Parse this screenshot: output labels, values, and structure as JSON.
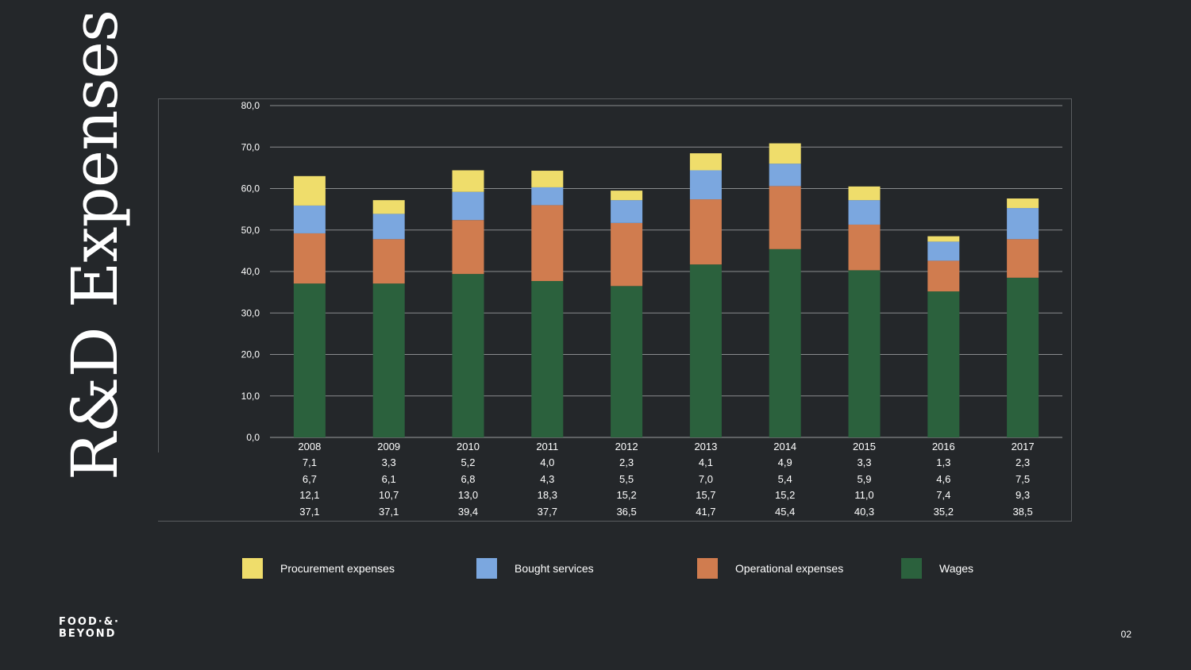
{
  "slide": {
    "title": "R&D Expenses",
    "page_number": "02",
    "logo": {
      "line1": "FOOD·&·",
      "line2": "BEYOND"
    }
  },
  "chart_data": {
    "type": "bar",
    "stacked": true,
    "categories": [
      "2008",
      "2009",
      "2010",
      "2011",
      "2012",
      "2013",
      "2014",
      "2015",
      "2016",
      "2017"
    ],
    "ylim": [
      0,
      80
    ],
    "yticks": [
      "0,0",
      "10,0",
      "20,0",
      "30,0",
      "40,0",
      "50,0",
      "60,0",
      "70,0",
      "80,0"
    ],
    "grid": true,
    "legend_position": "bottom",
    "series": [
      {
        "name": "Wages",
        "color": "#2b613d",
        "values": [
          37.1,
          37.1,
          39.4,
          37.7,
          36.5,
          41.7,
          45.4,
          40.3,
          35.2,
          38.5
        ],
        "labels": [
          "37,1",
          "37,1",
          "39,4",
          "37,7",
          "36,5",
          "41,7",
          "45,4",
          "40,3",
          "35,2",
          "38,5"
        ]
      },
      {
        "name": "Operational expenses",
        "color": "#d07c4f",
        "values": [
          12.1,
          10.7,
          13.0,
          18.3,
          15.2,
          15.7,
          15.2,
          11.0,
          7.4,
          9.3
        ],
        "labels": [
          "12,1",
          "10,7",
          "13,0",
          "18,3",
          "15,2",
          "15,7",
          "15,2",
          "11,0",
          "7,4",
          "9,3"
        ]
      },
      {
        "name": "Bought services",
        "color": "#7ba7df",
        "values": [
          6.7,
          6.1,
          6.8,
          4.3,
          5.5,
          7.0,
          5.4,
          5.9,
          4.6,
          7.5
        ],
        "labels": [
          "6,7",
          "6,1",
          "6,8",
          "4,3",
          "5,5",
          "7,0",
          "5,4",
          "5,9",
          "4,6",
          "7,5"
        ]
      },
      {
        "name": "Procurement expenses",
        "color": "#efdd6b",
        "values": [
          7.1,
          3.3,
          5.2,
          4.0,
          2.3,
          4.1,
          4.9,
          3.3,
          1.3,
          2.3
        ],
        "labels": [
          "7,1",
          "3,3",
          "5,2",
          "4,0",
          "2,3",
          "4,1",
          "4,9",
          "3,3",
          "1,3",
          "2,3"
        ]
      }
    ],
    "table_row_order": [
      "Procurement expenses",
      "Bought services",
      "Operational expenses",
      "Wages"
    ],
    "legend_order": [
      "Procurement expenses",
      "Bought services",
      "Operational expenses",
      "Wages"
    ]
  }
}
